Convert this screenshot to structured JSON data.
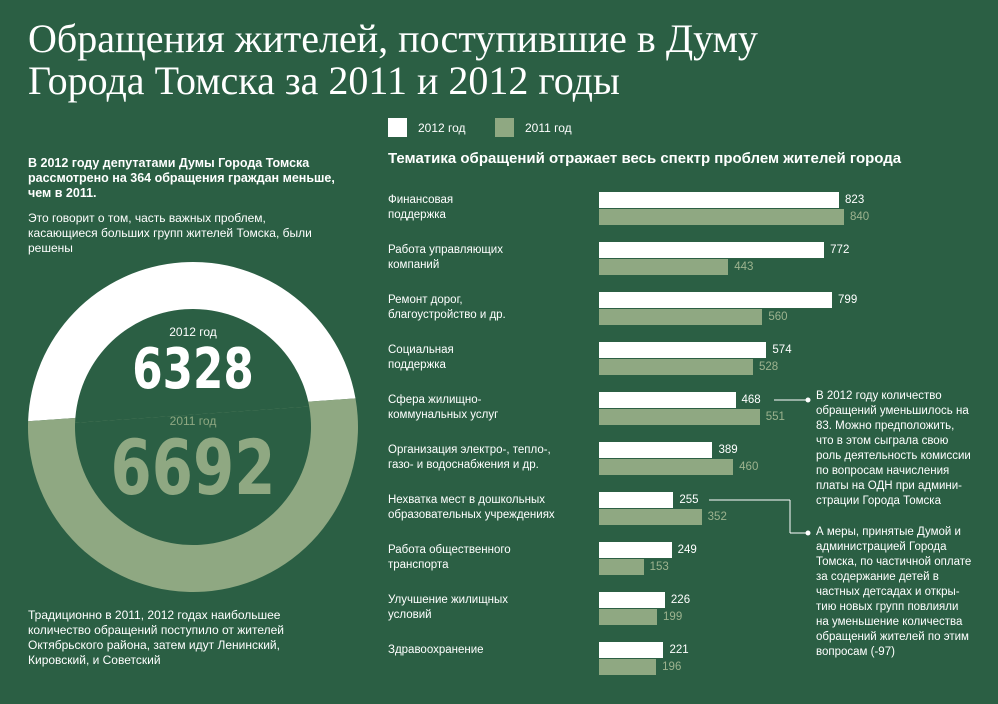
{
  "title": "Обращения жителей, поступившие в Думу Города Томска за 2011 и 2012 годы",
  "legend": [
    {
      "label": "2012 год",
      "color": "#ffffff"
    },
    {
      "label": "2011 год",
      "color": "#8fa882"
    }
  ],
  "intro_bold": "В 2012 году депутатами Думы Города Томска рассмотрено на 364 обращения граждан меньше, чем в 2011.",
  "intro": "Это говорит о том, часть важных проблем, касающиеся больших групп жителей Томска, были решены",
  "donut": {
    "label_2012": "2012 год",
    "value_2012": "6328",
    "label_2011": "2011 год",
    "value_2011": "6692"
  },
  "footer_text": "Традиционно в 2011, 2012 годах наибольшее количество обращений поступило от жителей Октябрьского района, затем идут Ленинский, Кировский, и Советский",
  "chart_title": "Тематика обращений отражает весь спектр проблем жителей города",
  "chart_data": {
    "type": "bar",
    "orientation": "horizontal",
    "title": "Тематика обращений отражает весь спектр проблем жителей города",
    "categories": [
      "Финансовая поддержка",
      "Работа управляющих компаний",
      "Ремонт дорог, благоустройство и др.",
      "Социальная поддержка",
      "Сфера жилищно-коммунальных услуг",
      "Организация электро-, тепло-, газо- и водоснабжения и др.",
      "Нехватка мест в дошкольных образовательных учреждениях",
      "Работа общественного транспорта",
      "Улучшение жилищных условий",
      "Здравоохранение"
    ],
    "category_lines": [
      [
        "Финансовая",
        "поддержка"
      ],
      [
        "Работа управляющих",
        "компаний"
      ],
      [
        "Ремонт дорог,",
        "благоустройство и др."
      ],
      [
        "Социальная",
        "поддержка"
      ],
      [
        "Сфера жилищно-",
        "коммунальных услуг"
      ],
      [
        "Организация электро-, тепло-,",
        "газо- и водоснабжения и др."
      ],
      [
        "Нехватка мест в дошкольных",
        "образовательных учреждениях"
      ],
      [
        "Работа общественного",
        "транспорта"
      ],
      [
        "Улучшение жилищных",
        "условий"
      ],
      [
        "Здравоохранение"
      ]
    ],
    "series": [
      {
        "name": "2012 год",
        "color": "#ffffff",
        "values": [
          823,
          772,
          799,
          574,
          468,
          389,
          255,
          249,
          226,
          221
        ]
      },
      {
        "name": "2011 год",
        "color": "#8fa882",
        "values": [
          840,
          443,
          560,
          528,
          551,
          460,
          352,
          153,
          199,
          196
        ]
      }
    ]
  },
  "notes": [
    {
      "text_lines": [
        "В 2012 году количество",
        "обращений уменьшилось на",
        "83. Можно предположить,",
        "что в этом сыграла свою",
        "роль деятельность комиссии",
        "по вопросам начисления",
        "платы на ОДН при админи-",
        "страции Города Томска"
      ]
    },
    {
      "text_lines": [
        "А меры, принятые Думой и",
        "администрацией Города",
        "Томска, по частичной оплате",
        "за содержание детей в",
        "частных детсадах и откры-",
        "тию новых групп повлияли",
        "на уменьшение количества",
        "обращений жителей по этим",
        "вопросам (-97)"
      ]
    }
  ]
}
